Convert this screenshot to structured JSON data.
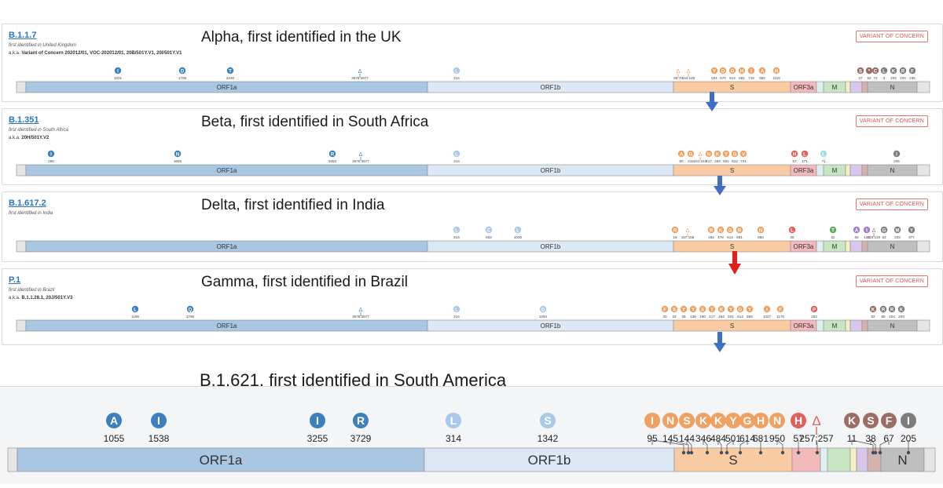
{
  "variants": [
    {
      "lineage": "B.1.1.7",
      "identified": "first identified in United Kingdom",
      "aka_prefix": "a.k.a.",
      "aka_text": "Variant of Concern 202012/01, VOC-202012/01, 20B/501Y.V1, 20I/501Y.V1",
      "headline": "Alpha, first identified in the UK",
      "badge": "VARIANT OF CONCERN",
      "mutations": [
        {
          "label": "I",
          "num": "1001",
          "gene": "ORF1a"
        },
        {
          "label": "D",
          "num": "1708",
          "gene": "ORF1a"
        },
        {
          "label": "T",
          "num": "2230",
          "gene": "ORF1a"
        },
        {
          "label": "Δ",
          "num": "3675:3677",
          "gene": "ORF1a",
          "del": true
        },
        {
          "label": "L",
          "num": "314",
          "gene": "ORF1b"
        },
        {
          "label": "Δ",
          "num": "69:70",
          "gene": "S",
          "del": true
        },
        {
          "label": "Δ",
          "num": "144:145",
          "gene": "S",
          "del": true
        },
        {
          "label": "Y",
          "num": "501",
          "gene": "S"
        },
        {
          "label": "D",
          "num": "570",
          "gene": "S"
        },
        {
          "label": "G",
          "num": "614",
          "gene": "S"
        },
        {
          "label": "H",
          "num": "681",
          "gene": "S"
        },
        {
          "label": "I",
          "num": "716",
          "gene": "S"
        },
        {
          "label": "A",
          "num": "982",
          "gene": "S"
        },
        {
          "label": "H",
          "num": "1118",
          "gene": "S"
        },
        {
          "label": "S",
          "num": "27",
          "gene": "ORF8"
        },
        {
          "label": "*",
          "num": "52",
          "gene": "ORF8"
        },
        {
          "label": "C",
          "num": "73",
          "gene": "ORF8"
        },
        {
          "label": "L",
          "num": "3",
          "gene": "N"
        },
        {
          "label": "K",
          "num": "203",
          "gene": "N"
        },
        {
          "label": "R",
          "num": "204",
          "gene": "N"
        },
        {
          "label": "F",
          "num": "235",
          "gene": "N"
        }
      ]
    },
    {
      "lineage": "B.1.351",
      "identified": "first identified in South Africa",
      "aka_prefix": "a.k.a.",
      "aka_text": "20H/501Y.V2",
      "headline": "Beta, first identified in South Africa",
      "badge": "VARIANT OF CONCERN",
      "mutations": [
        {
          "label": "I",
          "num": "265",
          "gene": "ORF1a"
        },
        {
          "label": "N",
          "num": "1655",
          "gene": "ORF1a"
        },
        {
          "label": "R",
          "num": "3353",
          "gene": "ORF1a"
        },
        {
          "label": "Δ",
          "num": "3675:3677",
          "gene": "ORF1a",
          "del": true
        },
        {
          "label": "L",
          "num": "314",
          "gene": "ORF1b"
        },
        {
          "label": "A",
          "num": "80",
          "gene": "S"
        },
        {
          "label": "G",
          "num": "215",
          "gene": "S"
        },
        {
          "label": "Δ",
          "num": "241:243",
          "gene": "S",
          "del": true
        },
        {
          "label": "N",
          "num": "417",
          "gene": "S"
        },
        {
          "label": "K",
          "num": "484",
          "gene": "S"
        },
        {
          "label": "Y",
          "num": "501",
          "gene": "S"
        },
        {
          "label": "G",
          "num": "614",
          "gene": "S"
        },
        {
          "label": "V",
          "num": "701",
          "gene": "S"
        },
        {
          "label": "H",
          "num": "57",
          "gene": "ORF3a"
        },
        {
          "label": "L",
          "num": "171",
          "gene": "ORF3a"
        },
        {
          "label": "L",
          "num": "71",
          "gene": "E"
        },
        {
          "label": "I",
          "num": "205",
          "gene": "N"
        }
      ]
    },
    {
      "lineage": "B.1.617.2",
      "identified": "first identified in India",
      "aka_prefix": "",
      "aka_text": "",
      "headline": "Delta, first identified in India",
      "badge": "VARIANT OF CONCERN",
      "mutations": [
        {
          "label": "L",
          "num": "314",
          "gene": "ORF1b"
        },
        {
          "label": "C",
          "num": "662",
          "gene": "ORF1b"
        },
        {
          "label": "L",
          "num": "1000",
          "gene": "ORF1b"
        },
        {
          "label": "R",
          "num": "19",
          "gene": "S"
        },
        {
          "label": "Δ",
          "num": "157:158",
          "gene": "S",
          "del": true
        },
        {
          "label": "R",
          "num": "452",
          "gene": "S"
        },
        {
          "label": "K",
          "num": "478",
          "gene": "S"
        },
        {
          "label": "G",
          "num": "614",
          "gene": "S"
        },
        {
          "label": "R",
          "num": "681",
          "gene": "S"
        },
        {
          "label": "N",
          "num": "950",
          "gene": "S"
        },
        {
          "label": "L",
          "num": "26",
          "gene": "ORF3a"
        },
        {
          "label": "T",
          "num": "82",
          "gene": "M"
        },
        {
          "label": "A",
          "num": "82",
          "gene": "ORF7a"
        },
        {
          "label": "I",
          "num": "120",
          "gene": "ORF7a"
        },
        {
          "label": "Δ",
          "num": "119:120",
          "gene": "ORF8",
          "del": true
        },
        {
          "label": "G",
          "num": "63",
          "gene": "N"
        },
        {
          "label": "M",
          "num": "203",
          "gene": "N"
        },
        {
          "label": "Y",
          "num": "377",
          "gene": "N"
        }
      ]
    },
    {
      "lineage": "P.1",
      "identified": "first identified in Brazil",
      "aka_prefix": "a.k.a.",
      "aka_text": "B.1.1.28.1, 20J/501Y.V3",
      "headline": "Gamma, first identified in Brazil",
      "badge": "VARIANT OF CONCERN",
      "mutations": [
        {
          "label": "L",
          "num": "1188",
          "gene": "ORF1a"
        },
        {
          "label": "Q",
          "num": "1795",
          "gene": "ORF1a"
        },
        {
          "label": "Δ",
          "num": "3675:3677",
          "gene": "ORF1a",
          "del": true
        },
        {
          "label": "L",
          "num": "314",
          "gene": "ORF1b"
        },
        {
          "label": "D",
          "num": "1264",
          "gene": "ORF1b"
        },
        {
          "label": "F",
          "num": "20",
          "gene": "S"
        },
        {
          "label": "S",
          "num": "18",
          "gene": "S"
        },
        {
          "label": "Y",
          "num": "26",
          "gene": "S"
        },
        {
          "label": "Y",
          "num": "138",
          "gene": "S"
        },
        {
          "label": "S",
          "num": "190",
          "gene": "S"
        },
        {
          "label": "T",
          "num": "417",
          "gene": "S"
        },
        {
          "label": "K",
          "num": "484",
          "gene": "S"
        },
        {
          "label": "Y",
          "num": "501",
          "gene": "S"
        },
        {
          "label": "G",
          "num": "614",
          "gene": "S"
        },
        {
          "label": "Y",
          "num": "655",
          "gene": "S"
        },
        {
          "label": "I",
          "num": "1027",
          "gene": "S"
        },
        {
          "label": "F",
          "num": "1176",
          "gene": "S"
        },
        {
          "label": "P",
          "num": "253",
          "gene": "ORF3a"
        },
        {
          "label": "K",
          "num": "92",
          "gene": "ORF8"
        },
        {
          "label": "R",
          "num": "80",
          "gene": "N"
        },
        {
          "label": "R",
          "num": "204",
          "gene": "N"
        },
        {
          "label": "K",
          "num": "203",
          "gene": "N"
        }
      ]
    }
  ],
  "genes": {
    "orf1a": "ORF1a",
    "orf1b": "ORF1b",
    "s": "S",
    "orf3a": "ORF3a",
    "m": "M",
    "n": "N"
  },
  "b1621": {
    "headline": "B.1.621, first identified in South America",
    "mutations": [
      {
        "label": "A",
        "num": "1055",
        "gene": "ORF1a"
      },
      {
        "label": "I",
        "num": "1538",
        "gene": "ORF1a"
      },
      {
        "label": "I",
        "num": "3255",
        "gene": "ORF1a"
      },
      {
        "label": "R",
        "num": "3729",
        "gene": "ORF1a"
      },
      {
        "label": "L",
        "num": "314",
        "gene": "ORF1b"
      },
      {
        "label": "S",
        "num": "1342",
        "gene": "ORF1b"
      },
      {
        "label": "I",
        "num": "95",
        "gene": "S"
      },
      {
        "label": "N",
        "num": "145",
        "gene": "S"
      },
      {
        "label": "S",
        "num": "144",
        "gene": "S"
      },
      {
        "label": "K",
        "num": "346",
        "gene": "S"
      },
      {
        "label": "K",
        "num": "484",
        "gene": "S"
      },
      {
        "label": "Y",
        "num": "501",
        "gene": "S"
      },
      {
        "label": "G",
        "num": "614",
        "gene": "S"
      },
      {
        "label": "H",
        "num": "681",
        "gene": "S"
      },
      {
        "label": "N",
        "num": "950",
        "gene": "S"
      },
      {
        "label": "H",
        "num": "57",
        "gene": "ORF3a"
      },
      {
        "label": "Δ",
        "num": "257:257",
        "gene": "ORF3a",
        "del": true
      },
      {
        "label": "K",
        "num": "11",
        "gene": "ORF8"
      },
      {
        "label": "S",
        "num": "38",
        "gene": "ORF8"
      },
      {
        "label": "F",
        "num": "67",
        "gene": "ORF8"
      },
      {
        "label": "I",
        "num": "205",
        "gene": "N"
      }
    ]
  },
  "colors": {
    "orf1a": "#a9c6e3",
    "orf1b": "#dde8f5",
    "s": "#f8cba3",
    "orf3a": "#f3b9bb",
    "e": "#dff0f2",
    "m": "#c7e5c2",
    "orf7": "#d9c6eb",
    "orf8": "#d4b3ad",
    "n": "#bfbfbf",
    "orf1a_mut": "#3d7fbf",
    "orf1b_mut": "#a9c8ea",
    "s_mut": "#f0a060",
    "orf3a_mut": "#e0605e",
    "e_mut": "#a6dbe3",
    "m_mut": "#5aaa5a",
    "orf7_mut": "#a57dd0",
    "orf8_mut": "#9a6e64",
    "n_mut": "#7d7d7d",
    "arrow_blue": "#3e6ec5",
    "arrow_red": "#e0201e",
    "lineage_link": "#2b73c4",
    "badge_red": "#d9534f"
  }
}
